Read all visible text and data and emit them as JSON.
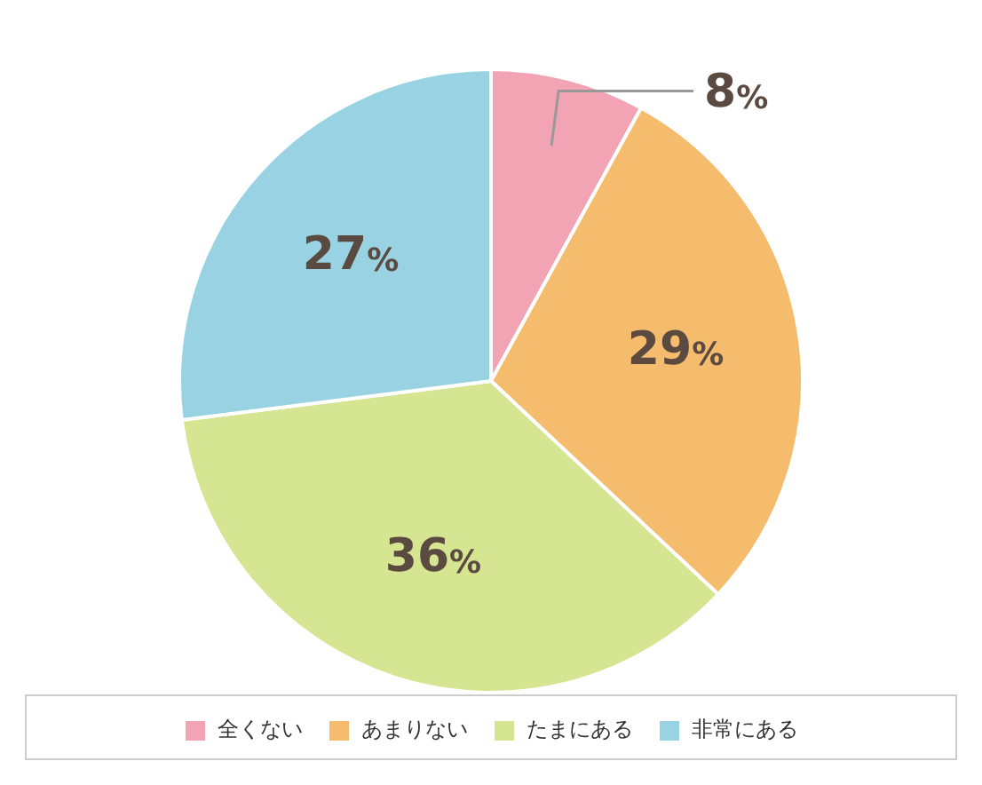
{
  "chart_data": {
    "type": "pie",
    "categories": [
      "全くない",
      "あまりない",
      "たまにある",
      "非常にある"
    ],
    "values": [
      8,
      29,
      36,
      27
    ],
    "colors": [
      "#f2a3b4",
      "#f5bc6e",
      "#d5e592",
      "#99d3e3"
    ],
    "value_labels": [
      "8%",
      "29%",
      "36%",
      "27%"
    ],
    "legend": "bottom"
  }
}
